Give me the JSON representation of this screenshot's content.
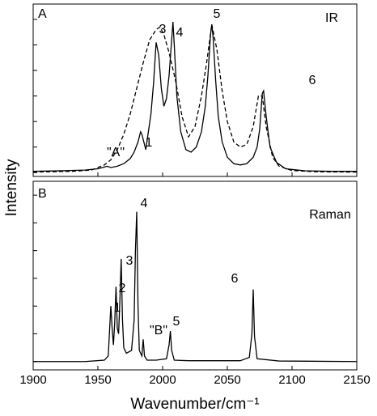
{
  "chart_data": [
    {
      "type": "line",
      "ylabel": "Intensity",
      "annotations": [
        "A",
        "IR",
        "\"A\"",
        "1",
        "3",
        "4",
        "5",
        "6"
      ],
      "x": [
        1900,
        1920,
        1940,
        1950,
        1955,
        1957,
        1960,
        1965,
        1970,
        1975,
        1978,
        1981,
        1983,
        1984,
        1985,
        1987,
        1989,
        1991,
        1993,
        1995,
        1997,
        1999,
        2001,
        2003,
        2005,
        2007,
        2008,
        2009,
        2011,
        2014,
        2018,
        2022,
        2026,
        2030,
        2033,
        2035,
        2037,
        2038,
        2039,
        2041,
        2043,
        2046,
        2050,
        2055,
        2060,
        2065,
        2070,
        2073,
        2075,
        2077,
        2078,
        2080,
        2083,
        2088,
        2095,
        2110,
        2130,
        2150
      ],
      "series": [
        {
          "color": "#000000",
          "dashed": false,
          "values": [
            0.05,
            0.07,
            0.1,
            0.15,
            0.22,
            0.25,
            0.2,
            0.25,
            0.35,
            0.55,
            0.8,
            1.2,
            1.6,
            1.5,
            1.3,
            0.9,
            1.6,
            2.3,
            3.5,
            5.1,
            4.6,
            3.3,
            2.6,
            2.9,
            3.8,
            5.2,
            5.9,
            5.0,
            3.0,
            1.6,
            0.9,
            0.8,
            1.0,
            1.6,
            2.6,
            3.8,
            5.4,
            5.8,
            5.3,
            3.6,
            2.2,
            1.2,
            0.6,
            0.35,
            0.3,
            0.35,
            0.6,
            1.0,
            1.7,
            3.1,
            3.2,
            2.2,
            1.0,
            0.4,
            0.15,
            0.07,
            0.05,
            0.05
          ]
        }
      ],
      "dashed_x": [
        1900,
        1930,
        1945,
        1955,
        1960,
        1965,
        1970,
        1975,
        1980,
        1985,
        1990,
        1995,
        1998,
        2001,
        2005,
        2010,
        2015,
        2020,
        2025,
        2030,
        2034,
        2038,
        2042,
        2046,
        2050,
        2055,
        2060,
        2065,
        2070,
        2074,
        2077,
        2080,
        2085,
        2090,
        2100,
        2120,
        2150
      ],
      "dashed_series": {
        "color": "#000000",
        "dashed": true,
        "values": [
          0.02,
          0.05,
          0.1,
          0.3,
          0.5,
          0.9,
          1.5,
          2.3,
          3.3,
          4.3,
          5.2,
          5.6,
          5.7,
          5.4,
          4.7,
          3.6,
          2.2,
          1.4,
          1.8,
          3.0,
          4.3,
          5.8,
          4.8,
          3.2,
          2.0,
          1.2,
          1.0,
          1.1,
          1.8,
          3.0,
          3.0,
          1.8,
          0.6,
          0.25,
          0.08,
          0.03,
          0.02
        ]
      },
      "xlim": [
        1900,
        2150
      ],
      "xticks": [
        1900,
        1950,
        2000,
        2050,
        2100,
        2150
      ],
      "ylim": [
        -0.15,
        6.6
      ],
      "yticks": [
        0,
        1,
        2,
        3,
        4,
        5,
        6
      ]
    },
    {
      "type": "line",
      "xlabel": "Wavenumber/cm⁻¹",
      "annotations": [
        "B",
        "Raman",
        "1",
        "2",
        "3",
        "4",
        "\"B\"",
        "5",
        "6"
      ],
      "x": [
        1900,
        1940,
        1955,
        1958,
        1960,
        1961,
        1962,
        1963,
        1964,
        1965,
        1966,
        1967,
        1968,
        1969,
        1970,
        1972,
        1976,
        1978,
        1979,
        1980,
        1981,
        1982,
        1984,
        1985,
        1986,
        1988,
        1995,
        2003,
        2005,
        2006,
        2007,
        2009,
        2020,
        2060,
        2067,
        2069,
        2070,
        2071,
        2073,
        2090,
        2150
      ],
      "series": [
        {
          "color": "#000000",
          "dashed": false,
          "values": [
            0,
            0,
            0.05,
            0.2,
            2.0,
            1.2,
            0.6,
            1.4,
            2.7,
            1.2,
            1.0,
            2.2,
            3.7,
            1.5,
            0.5,
            0.3,
            0.4,
            1.5,
            4.0,
            5.4,
            2.0,
            0.4,
            0.2,
            0.8,
            0.2,
            0.05,
            0.05,
            0.1,
            0.6,
            1.1,
            0.4,
            0.05,
            0.03,
            0.03,
            0.15,
            1.0,
            2.6,
            0.9,
            0.1,
            0.02,
            0
          ]
        }
      ],
      "xlim": [
        1900,
        2150
      ],
      "xticks": [
        1900,
        1950,
        2000,
        2050,
        2100,
        2150
      ],
      "ylim": [
        -0.3,
        6.5
      ],
      "yticks": [
        0,
        1,
        2,
        3,
        4,
        5,
        6
      ]
    }
  ]
}
